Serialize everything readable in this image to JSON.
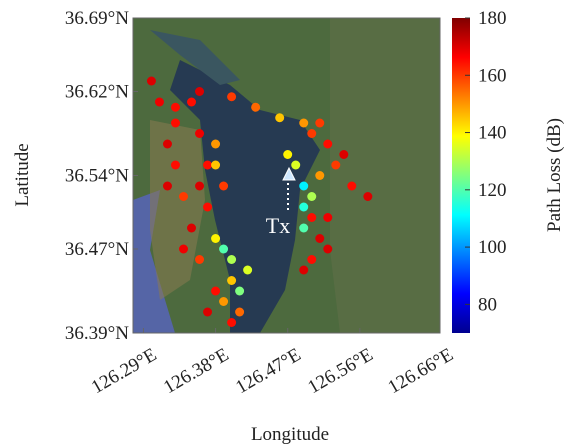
{
  "chart_data": {
    "type": "scatter",
    "xlabel": "Longitude",
    "ylabel": "Latitude",
    "colorbar_label": "Path Loss (dB)",
    "annotation": "Tx",
    "colormap": "jet",
    "xlim": [
      126.277,
      126.66
    ],
    "ylim": [
      36.39,
      36.69
    ],
    "clim": [
      70,
      180
    ],
    "xticks": [
      {
        "value": 126.29,
        "label": "126.29°E"
      },
      {
        "value": 126.38,
        "label": "126.38°E"
      },
      {
        "value": 126.47,
        "label": "126.47°E"
      },
      {
        "value": 126.56,
        "label": "126.56°E"
      },
      {
        "value": 126.66,
        "label": "126.66°E"
      }
    ],
    "yticks": [
      {
        "value": 36.39,
        "label": "36.39°N"
      },
      {
        "value": 36.47,
        "label": "36.47°N"
      },
      {
        "value": 36.54,
        "label": "36.54°N"
      },
      {
        "value": 36.62,
        "label": "36.62°N"
      },
      {
        "value": 36.69,
        "label": "36.69°N"
      }
    ],
    "cticks": [
      80,
      100,
      120,
      140,
      160,
      180
    ],
    "x": [
      126.3,
      126.31,
      126.33,
      126.35,
      126.36,
      126.4,
      126.43,
      126.46,
      126.49,
      126.51,
      126.47,
      126.48,
      126.49,
      126.49,
      126.49,
      126.5,
      126.51,
      126.53,
      126.55,
      126.57,
      126.5,
      126.52,
      126.54,
      126.5,
      126.51,
      126.5,
      126.49,
      126.52,
      126.52,
      126.33,
      126.32,
      126.33,
      126.32,
      126.34,
      126.36,
      126.37,
      126.36,
      126.38,
      126.38,
      126.39,
      126.37,
      126.35,
      126.34,
      126.36,
      126.38,
      126.39,
      126.4,
      126.4,
      126.39,
      126.41,
      126.41,
      126.4,
      126.38,
      126.37,
      126.42
    ],
    "y": [
      36.63,
      36.61,
      36.605,
      36.61,
      36.62,
      36.615,
      36.605,
      36.595,
      36.59,
      36.59,
      36.56,
      36.55,
      36.53,
      36.51,
      36.49,
      36.52,
      36.54,
      36.55,
      36.53,
      36.52,
      36.58,
      36.57,
      36.56,
      36.5,
      36.48,
      36.46,
      36.45,
      36.47,
      36.5,
      36.59,
      36.57,
      36.55,
      36.53,
      36.52,
      36.53,
      36.55,
      36.58,
      36.57,
      36.55,
      36.53,
      36.51,
      36.49,
      36.47,
      36.46,
      36.48,
      36.47,
      36.46,
      36.44,
      36.42,
      36.43,
      36.41,
      36.4,
      36.43,
      36.41,
      36.45
    ],
    "c": [
      170,
      168,
      165,
      165,
      170,
      160,
      155,
      145,
      150,
      160,
      140,
      135,
      110,
      115,
      120,
      130,
      150,
      160,
      165,
      170,
      160,
      165,
      170,
      165,
      170,
      165,
      170,
      170,
      168,
      165,
      170,
      165,
      170,
      160,
      170,
      165,
      168,
      150,
      145,
      160,
      165,
      170,
      168,
      160,
      140,
      120,
      130,
      145,
      150,
      125,
      155,
      165,
      165,
      170,
      135
    ]
  }
}
